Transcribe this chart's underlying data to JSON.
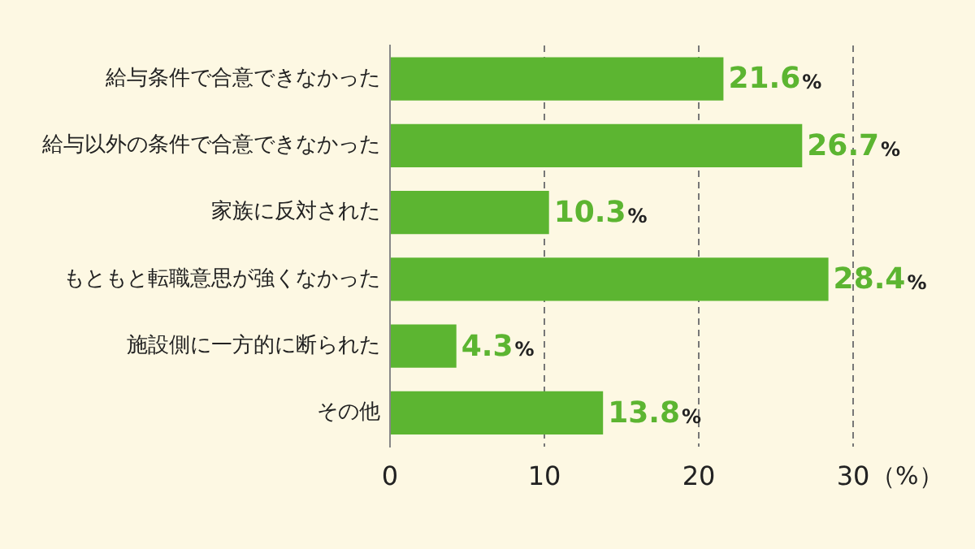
{
  "chart_data": {
    "type": "bar",
    "orientation": "horizontal",
    "categories": [
      "給与条件で合意できなかった",
      "給与以外の条件で合意できなかった",
      "家族に反対された",
      "もともと転職意思が強くなかった",
      "施設側に一方的に断られた",
      "その他"
    ],
    "values": [
      21.6,
      26.7,
      10.3,
      28.4,
      4.3,
      13.8
    ],
    "color": "#5cb531",
    "value_labels": [
      "21.6%",
      "26.7%",
      "10.3%",
      "28.4%",
      "4.3%",
      "13.8%"
    ],
    "xlim": [
      0,
      30
    ],
    "xticks": [
      0,
      10,
      20,
      30
    ],
    "xlabel": "（%）",
    "grid": "x",
    "line_style": "dashed",
    "legend": false
  }
}
